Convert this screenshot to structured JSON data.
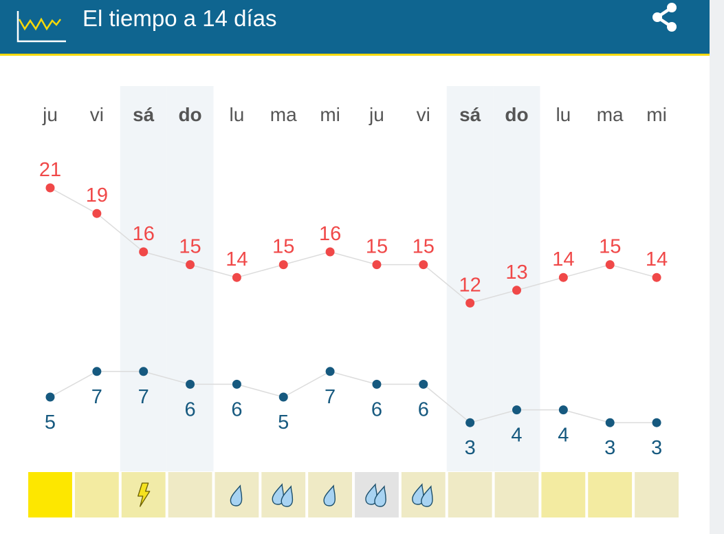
{
  "header": {
    "title": "El tiempo a 14 días",
    "icon": "chart-line-icon",
    "share_icon": "share-icon",
    "bg_color": "#0f6590",
    "accent_color": "#f5d90a"
  },
  "days": [
    {
      "label": "ju",
      "weekend": false,
      "max": 21,
      "min": 5,
      "weather": "sun",
      "color": "#fde700"
    },
    {
      "label": "vi",
      "weekend": false,
      "max": 19,
      "min": 7,
      "weather": "clear",
      "color": "#f3eba1"
    },
    {
      "label": "sá",
      "weekend": true,
      "max": 16,
      "min": 7,
      "weather": "storm",
      "color": "#f1eba8"
    },
    {
      "label": "do",
      "weekend": true,
      "max": 15,
      "min": 6,
      "weather": "clear",
      "color": "#efeac5"
    },
    {
      "label": "lu",
      "weekend": false,
      "max": 14,
      "min": 6,
      "weather": "rain-light",
      "color": "#efeac5"
    },
    {
      "label": "ma",
      "weekend": false,
      "max": 15,
      "min": 5,
      "weather": "rain",
      "color": "#efeac5"
    },
    {
      "label": "mi",
      "weekend": false,
      "max": 16,
      "min": 7,
      "weather": "rain-light",
      "color": "#efeac5"
    },
    {
      "label": "ju",
      "weekend": false,
      "max": 15,
      "min": 6,
      "weather": "rain",
      "color": "#e3e3e3"
    },
    {
      "label": "vi",
      "weekend": false,
      "max": 15,
      "min": 6,
      "weather": "rain",
      "color": "#efeac5"
    },
    {
      "label": "sá",
      "weekend": true,
      "max": 12,
      "min": 3,
      "weather": "clear",
      "color": "#efeac5"
    },
    {
      "label": "do",
      "weekend": true,
      "max": 13,
      "min": 4,
      "weather": "clear",
      "color": "#efeac5"
    },
    {
      "label": "lu",
      "weekend": false,
      "max": 14,
      "min": 4,
      "weather": "clear",
      "color": "#f3eba1"
    },
    {
      "label": "ma",
      "weekend": false,
      "max": 15,
      "min": 3,
      "weather": "clear",
      "color": "#f3eba1"
    },
    {
      "label": "mi",
      "weekend": false,
      "max": 14,
      "min": 3,
      "weather": "clear",
      "color": "#efeac5"
    }
  ],
  "colors": {
    "max": "#f04848",
    "min": "#16597f",
    "weekend_band": "#f1f5f8",
    "day_label": "#555555",
    "weekend_label": "#555555"
  }
}
